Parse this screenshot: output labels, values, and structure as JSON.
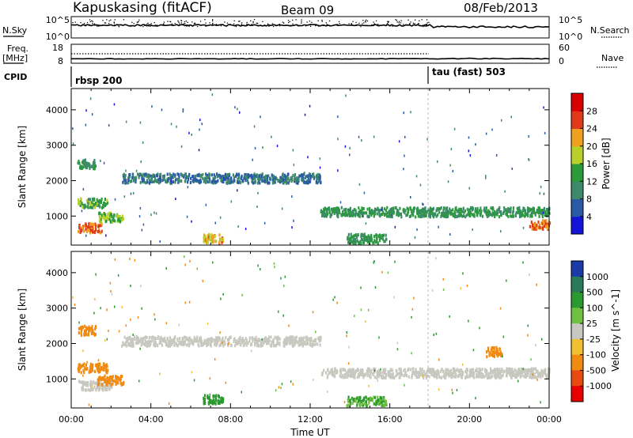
{
  "header": {
    "station": "Kapuskasing (fitACF)",
    "beam": "Beam 09",
    "date": "08/Feb/2013"
  },
  "top_panels": {
    "nsky_label": "N.Sky",
    "nsky_tick_top": "10^5",
    "nsky_tick_bottom": "10^0",
    "nsearch_label": "N.Search",
    "nsearch_tick_top": "10^5",
    "nsearch_tick_bottom": "10^0",
    "freq_label": "Freq.",
    "freq_unit": "[MHz]",
    "freq_tick_top": "18",
    "freq_tick_bottom": "8",
    "nave_label": "Nave",
    "nave_tick_top": "60",
    "nave_tick_bottom": "0",
    "cpid_label": "CPID",
    "cpid_segments": [
      {
        "name": "rbsp 200",
        "start_hour": 0
      },
      {
        "name": "tau (fast) 503",
        "start_hour": 18.0
      }
    ]
  },
  "chart_data": [
    {
      "type": "heatmap",
      "panel": "power",
      "ylabel": "Slant Range [km]",
      "xlabel": "",
      "ylim": [
        180,
        4600
      ],
      "xlim": [
        0,
        24
      ],
      "yticks": [
        "1000",
        "2000",
        "3000",
        "4000"
      ],
      "colorbar": {
        "label": "Power [dB]",
        "ticks": [
          "4",
          "8",
          "12",
          "16",
          "20",
          "24",
          "28"
        ],
        "colors": [
          "#1414d8",
          "#2a5aa6",
          "#3d8a6a",
          "#2a9a3a",
          "#b8d12a",
          "#f0a020",
          "#e03a1a",
          "#d80000"
        ]
      },
      "echo_bands": [
        {
          "start_hour": 0.3,
          "end_hour": 1.2,
          "range_km": 2500,
          "power_db": 12
        },
        {
          "start_hour": 0.3,
          "end_hour": 1.8,
          "range_km": 1400,
          "power_db": 14
        },
        {
          "start_hour": 0.3,
          "end_hour": 1.5,
          "range_km": 700,
          "power_db": 24
        },
        {
          "start_hour": 1.3,
          "end_hour": 2.6,
          "range_km": 1000,
          "power_db": 16
        },
        {
          "start_hour": 2.5,
          "end_hour": 12.5,
          "range_km": 2100,
          "power_db": 8
        },
        {
          "start_hour": 6.6,
          "end_hour": 7.6,
          "range_km": 400,
          "power_db": 22
        },
        {
          "start_hour": 12.5,
          "end_hour": 24.0,
          "range_km": 1150,
          "power_db": 12
        },
        {
          "start_hour": 13.8,
          "end_hour": 15.8,
          "range_km": 400,
          "power_db": 12
        },
        {
          "start_hour": 23.0,
          "end_hour": 24.0,
          "range_km": 800,
          "power_db": 24
        }
      ]
    },
    {
      "type": "heatmap",
      "panel": "velocity",
      "ylabel": "Slant Range [km]",
      "xlabel": "Time UT",
      "ylim": [
        180,
        4600
      ],
      "xlim": [
        0,
        24
      ],
      "yticks": [
        "1000",
        "2000",
        "3000",
        "4000"
      ],
      "xticks": [
        "00:00",
        "04:00",
        "08:00",
        "12:00",
        "16:00",
        "20:00",
        "00:00"
      ],
      "colorbar": {
        "label": "Velocity [m s^-1]",
        "ticks": [
          "1000",
          "500",
          "100",
          "25",
          "-25",
          "-100",
          "-500",
          "-1000"
        ],
        "colors": [
          "#1a3aa8",
          "#2a7a5a",
          "#2a9a30",
          "#70c040",
          "#c8c8c0",
          "#f0c030",
          "#f08a10",
          "#e84a10",
          "#e80000"
        ]
      },
      "echo_bands": [
        {
          "start_hour": 0.3,
          "end_hour": 1.2,
          "range_km": 2400,
          "velocity_ms": -200
        },
        {
          "start_hour": 0.3,
          "end_hour": 1.8,
          "range_km": 1350,
          "velocity_ms": -300
        },
        {
          "start_hour": 0.3,
          "end_hour": 2.0,
          "range_km": 850,
          "velocity_ms": 0
        },
        {
          "start_hour": 1.3,
          "end_hour": 2.6,
          "range_km": 1000,
          "velocity_ms": -400
        },
        {
          "start_hour": 2.5,
          "end_hour": 12.5,
          "range_km": 2100,
          "velocity_ms": 0
        },
        {
          "start_hour": 6.6,
          "end_hour": 7.6,
          "range_km": 450,
          "velocity_ms": 150
        },
        {
          "start_hour": 12.5,
          "end_hour": 24.0,
          "range_km": 1200,
          "velocity_ms": 0
        },
        {
          "start_hour": 13.8,
          "end_hour": 15.8,
          "range_km": 400,
          "velocity_ms": 100
        },
        {
          "start_hour": 20.8,
          "end_hour": 21.6,
          "range_km": 1800,
          "velocity_ms": -300
        }
      ]
    }
  ]
}
